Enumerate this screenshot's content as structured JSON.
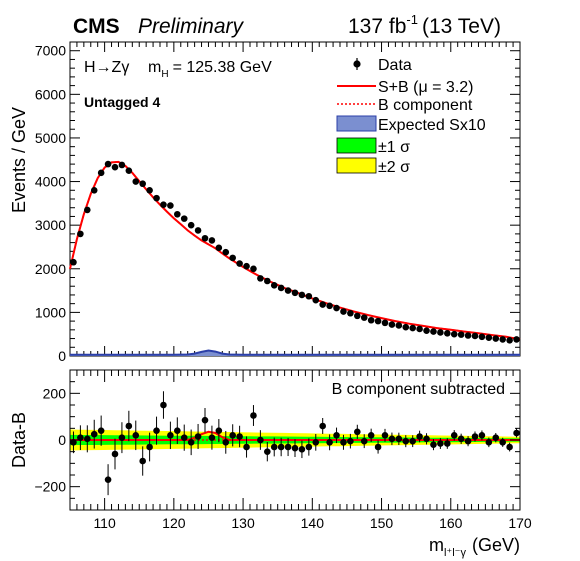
{
  "header": {
    "experiment": "CMS",
    "status": "Preliminary",
    "lumi_value": "137 fb",
    "lumi_exp": "-1",
    "lumi_energy": "(13 TeV)"
  },
  "annotations": {
    "process": "H→Zγ",
    "mass_label": "m",
    "mass_sub": "H",
    "mass_value": "= 125.38 GeV",
    "category": "Untagged 4",
    "lower_note": "B component subtracted"
  },
  "legend": {
    "data": "Data",
    "sb": "S+B (μ = 3.2)",
    "b": "B component",
    "sig": "Expected Sx10",
    "one_sigma": "±1 σ",
    "two_sigma": "±2 σ"
  },
  "axes": {
    "top_ylabel": "Events / GeV",
    "bottom_ylabel": "Data-B",
    "xlabel_main": "m",
    "xlabel_sub": "l⁺l⁻γ",
    "xlabel_unit": "(GeV)"
  },
  "colors": {
    "sb_line": "#ff0000",
    "b_line": "#ff0000",
    "signal_fill": "#7b8fd0",
    "signal_line": "#2b3fa8",
    "band_1sigma": "#00ff00",
    "band_2sigma": "#ffff00",
    "data": "#000000"
  },
  "chart_data": {
    "type": "scatter",
    "xlim": [
      105,
      170
    ],
    "x_ticks": [
      110,
      120,
      130,
      140,
      150,
      160,
      170
    ],
    "top": {
      "ylim": [
        0,
        7200
      ],
      "y_ticks": [
        0,
        1000,
        2000,
        3000,
        4000,
        5000,
        6000,
        7000
      ],
      "data_x": [
        105.5,
        106.5,
        107.5,
        108.5,
        109.5,
        110.5,
        111.5,
        112.5,
        113.5,
        114.5,
        115.5,
        116.5,
        117.5,
        118.5,
        119.5,
        120.5,
        121.5,
        122.5,
        123.5,
        124.5,
        125.5,
        126.5,
        127.5,
        128.5,
        129.5,
        130.5,
        131.5,
        132.5,
        133.5,
        134.5,
        135.5,
        136.5,
        137.5,
        138.5,
        139.5,
        140.5,
        141.5,
        142.5,
        143.5,
        144.5,
        145.5,
        146.5,
        147.5,
        148.5,
        149.5,
        150.5,
        151.5,
        152.5,
        153.5,
        154.5,
        155.5,
        156.5,
        157.5,
        158.5,
        159.5,
        160.5,
        161.5,
        162.5,
        163.5,
        164.5,
        165.5,
        166.5,
        167.5,
        168.5,
        169.5
      ],
      "data_y": [
        2150,
        2800,
        3350,
        3800,
        4200,
        4400,
        4330,
        4380,
        4250,
        4000,
        3950,
        3800,
        3620,
        3470,
        3450,
        3250,
        3150,
        3000,
        2880,
        2700,
        2650,
        2480,
        2380,
        2250,
        2120,
        2060,
        2000,
        1780,
        1720,
        1620,
        1560,
        1500,
        1450,
        1400,
        1370,
        1280,
        1180,
        1150,
        1100,
        1020,
        980,
        920,
        880,
        820,
        800,
        760,
        720,
        700,
        660,
        640,
        620,
        580,
        560,
        540,
        520,
        500,
        490,
        470,
        460,
        440,
        420,
        400,
        380,
        360,
        380
      ],
      "sb_curve": [
        [
          105,
          2000
        ],
        [
          106,
          2680
        ],
        [
          107,
          3250
        ],
        [
          108,
          3720
        ],
        [
          109,
          4080
        ],
        [
          110,
          4320
        ],
        [
          111,
          4440
        ],
        [
          112,
          4450
        ],
        [
          113,
          4360
        ],
        [
          114,
          4200
        ],
        [
          115,
          4010
        ],
        [
          116,
          3820
        ],
        [
          117,
          3640
        ],
        [
          118,
          3470
        ],
        [
          119,
          3310
        ],
        [
          120,
          3160
        ],
        [
          121,
          3020
        ],
        [
          122,
          2880
        ],
        [
          123,
          2760
        ],
        [
          124,
          2650
        ],
        [
          125,
          2560
        ],
        [
          126,
          2470
        ],
        [
          127,
          2350
        ],
        [
          128,
          2240
        ],
        [
          129,
          2140
        ],
        [
          130,
          2040
        ],
        [
          131,
          1950
        ],
        [
          132,
          1860
        ],
        [
          133,
          1780
        ],
        [
          134,
          1700
        ],
        [
          135,
          1630
        ],
        [
          136,
          1560
        ],
        [
          137,
          1500
        ],
        [
          138,
          1440
        ],
        [
          139,
          1380
        ],
        [
          140,
          1320
        ],
        [
          142,
          1210
        ],
        [
          144,
          1110
        ],
        [
          146,
          1020
        ],
        [
          148,
          940
        ],
        [
          150,
          870
        ],
        [
          152,
          800
        ],
        [
          154,
          740
        ],
        [
          156,
          690
        ],
        [
          158,
          640
        ],
        [
          160,
          600
        ],
        [
          162,
          560
        ],
        [
          164,
          520
        ],
        [
          166,
          480
        ],
        [
          168,
          440
        ],
        [
          170,
          380
        ]
      ],
      "signal_curve": [
        [
          105,
          30
        ],
        [
          120,
          30
        ],
        [
          122,
          35
        ],
        [
          123,
          55
        ],
        [
          124,
          95
        ],
        [
          125,
          125
        ],
        [
          126,
          100
        ],
        [
          127,
          55
        ],
        [
          128,
          35
        ],
        [
          130,
          30
        ],
        [
          170,
          30
        ]
      ]
    },
    "bottom": {
      "ylim": [
        -300,
        300
      ],
      "y_ticks": [
        -200,
        0,
        200
      ],
      "data_x": [
        105.5,
        106.5,
        107.5,
        108.5,
        109.5,
        110.5,
        111.5,
        112.5,
        113.5,
        114.5,
        115.5,
        116.5,
        117.5,
        118.5,
        119.5,
        120.5,
        121.5,
        122.5,
        123.5,
        124.5,
        125.5,
        126.5,
        127.5,
        128.5,
        129.5,
        130.5,
        131.5,
        132.5,
        133.5,
        134.5,
        135.5,
        136.5,
        137.5,
        138.5,
        139.5,
        140.5,
        141.5,
        142.5,
        143.5,
        144.5,
        145.5,
        146.5,
        147.5,
        148.5,
        149.5,
        150.5,
        151.5,
        152.5,
        153.5,
        154.5,
        155.5,
        156.5,
        157.5,
        158.5,
        159.5,
        160.5,
        161.5,
        162.5,
        163.5,
        164.5,
        165.5,
        166.5,
        167.5,
        168.5,
        169.5
      ],
      "data_y": [
        -10,
        10,
        5,
        25,
        40,
        -170,
        -60,
        10,
        60,
        20,
        -90,
        -30,
        40,
        150,
        20,
        40,
        10,
        -10,
        15,
        85,
        10,
        40,
        -10,
        20,
        15,
        -30,
        105,
        0,
        -50,
        -30,
        -30,
        -30,
        -35,
        -40,
        -30,
        -10,
        60,
        -10,
        20,
        -10,
        -5,
        35,
        -5,
        20,
        -30,
        20,
        5,
        5,
        -5,
        -5,
        15,
        5,
        -20,
        -15,
        -15,
        20,
        5,
        -5,
        15,
        20,
        -10,
        10,
        -10,
        -30,
        30
      ],
      "sb_minus_b": [
        [
          105,
          0
        ],
        [
          122,
          0
        ],
        [
          123,
          10
        ],
        [
          124,
          25
        ],
        [
          125,
          35
        ],
        [
          126,
          30
        ],
        [
          127,
          12
        ],
        [
          128,
          0
        ],
        [
          170,
          0
        ]
      ]
    }
  }
}
